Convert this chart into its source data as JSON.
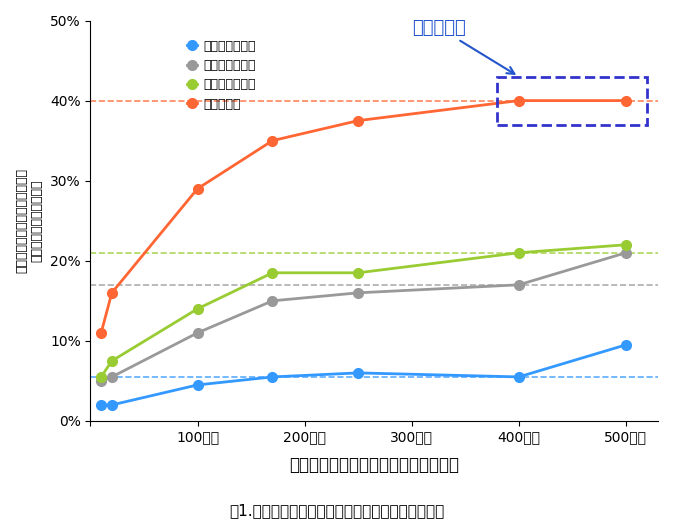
{
  "x_values": [
    10,
    20,
    100,
    170,
    250,
    400,
    500
  ],
  "x_ticks": [
    0,
    100,
    200,
    300,
    400,
    500
  ],
  "x_ticklabels": [
    "",
    "100万人",
    "200万人",
    "300万人",
    "400万人",
    "500万人"
  ],
  "africa": [
    2,
    2,
    4.5,
    5.5,
    6,
    5.5,
    9.5
  ],
  "east_asia": [
    5,
    5.5,
    11,
    15,
    16,
    17,
    21
  ],
  "south_asia": [
    5.5,
    7.5,
    14,
    18.5,
    18.5,
    21,
    22
  ],
  "europe": [
    11,
    16,
    29,
    35,
    37.5,
    40,
    40
  ],
  "africa_color": "#3399ff",
  "east_asia_color": "#999999",
  "south_asia_color": "#99cc33",
  "europe_color": "#ff6633",
  "africa_label": "アフリカ系集団",
  "east_asia_label": "東アジア人集団",
  "south_asia_label": "南アジア人集団",
  "europe_label": "欧米人集団",
  "ylabel_line1": "感受性遗伝子領域が説明可能な",
  "ylabel_line2": "身長の遙伝的背景の割合",
  "xlabel": "ゲノム解析におけるサンプル数の増加",
  "title_bottom": "図1.ゲノム解析により説明される身長の遙伝的背景",
  "annotation_text": "飽和状態に",
  "ylim": [
    0,
    50
  ],
  "xlim": [
    0,
    530
  ],
  "dashed_lines": {
    "africa": 5.5,
    "east_asia": 17,
    "south_asia": 21,
    "europe": 40
  },
  "rect_x1": 380,
  "rect_x2": 520,
  "rect_y1": 37,
  "rect_y2": 43
}
